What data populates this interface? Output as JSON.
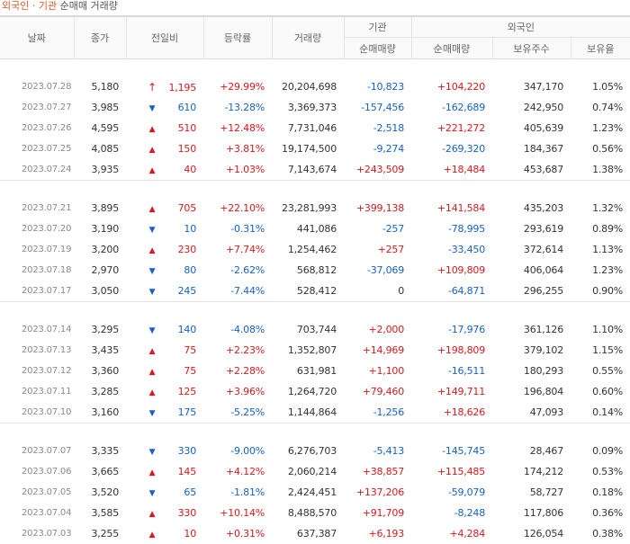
{
  "caption": {
    "highlight": "외국인 · 기관",
    "rest": "순매매 거래량"
  },
  "header": {
    "date": "날짜",
    "close": "종가",
    "change": "전일비",
    "rate": "등락률",
    "volume": "거래량",
    "inst_group": "기관",
    "foreign_group": "외국인",
    "inst_net": "순매매량",
    "foreign_net": "순매매량",
    "foreign_holdings": "보유주수",
    "foreign_ratio": "보유율"
  },
  "groups": [
    {
      "rows": [
        {
          "date": "2023.07.28",
          "close": "5,180",
          "dir": "up",
          "arrow": "↑",
          "change": "1,195",
          "rate": "+29.99%",
          "volume": "20,204,698",
          "inst": "-10,823",
          "foreign": "+104,220",
          "holdings": "347,170",
          "ratio": "1.05%"
        },
        {
          "date": "2023.07.27",
          "close": "3,985",
          "dir": "down",
          "arrow": "▼",
          "change": "610",
          "rate": "-13.28%",
          "volume": "3,369,373",
          "inst": "-157,456",
          "foreign": "-162,689",
          "holdings": "242,950",
          "ratio": "0.74%"
        },
        {
          "date": "2023.07.26",
          "close": "4,595",
          "dir": "up",
          "arrow": "▲",
          "change": "510",
          "rate": "+12.48%",
          "volume": "7,731,046",
          "inst": "-2,518",
          "foreign": "+221,272",
          "holdings": "405,639",
          "ratio": "1.23%"
        },
        {
          "date": "2023.07.25",
          "close": "4,085",
          "dir": "up",
          "arrow": "▲",
          "change": "150",
          "rate": "+3.81%",
          "volume": "19,174,500",
          "inst": "-9,274",
          "foreign": "-269,320",
          "holdings": "184,367",
          "ratio": "0.56%"
        },
        {
          "date": "2023.07.24",
          "close": "3,935",
          "dir": "up",
          "arrow": "▲",
          "change": "40",
          "rate": "+1.03%",
          "volume": "7,143,674",
          "inst": "+243,509",
          "foreign": "+18,484",
          "holdings": "453,687",
          "ratio": "1.38%"
        }
      ]
    },
    {
      "rows": [
        {
          "date": "2023.07.21",
          "close": "3,895",
          "dir": "up",
          "arrow": "▲",
          "change": "705",
          "rate": "+22.10%",
          "volume": "23,281,993",
          "inst": "+399,138",
          "foreign": "+141,584",
          "holdings": "435,203",
          "ratio": "1.32%"
        },
        {
          "date": "2023.07.20",
          "close": "3,190",
          "dir": "down",
          "arrow": "▼",
          "change": "10",
          "rate": "-0.31%",
          "volume": "441,086",
          "inst": "-257",
          "foreign": "-78,995",
          "holdings": "293,619",
          "ratio": "0.89%"
        },
        {
          "date": "2023.07.19",
          "close": "3,200",
          "dir": "up",
          "arrow": "▲",
          "change": "230",
          "rate": "+7.74%",
          "volume": "1,254,462",
          "inst": "+257",
          "foreign": "-33,450",
          "holdings": "372,614",
          "ratio": "1.13%"
        },
        {
          "date": "2023.07.18",
          "close": "2,970",
          "dir": "down",
          "arrow": "▼",
          "change": "80",
          "rate": "-2.62%",
          "volume": "568,812",
          "inst": "-37,069",
          "foreign": "+109,809",
          "holdings": "406,064",
          "ratio": "1.23%"
        },
        {
          "date": "2023.07.17",
          "close": "3,050",
          "dir": "down",
          "arrow": "▼",
          "change": "245",
          "rate": "-7.44%",
          "volume": "528,412",
          "inst": "0",
          "foreign": "-64,871",
          "holdings": "296,255",
          "ratio": "0.90%"
        }
      ]
    },
    {
      "rows": [
        {
          "date": "2023.07.14",
          "close": "3,295",
          "dir": "down",
          "arrow": "▼",
          "change": "140",
          "rate": "-4.08%",
          "volume": "703,744",
          "inst": "+2,000",
          "foreign": "-17,976",
          "holdings": "361,126",
          "ratio": "1.10%"
        },
        {
          "date": "2023.07.13",
          "close": "3,435",
          "dir": "up",
          "arrow": "▲",
          "change": "75",
          "rate": "+2.23%",
          "volume": "1,352,807",
          "inst": "+14,969",
          "foreign": "+198,809",
          "holdings": "379,102",
          "ratio": "1.15%"
        },
        {
          "date": "2023.07.12",
          "close": "3,360",
          "dir": "up",
          "arrow": "▲",
          "change": "75",
          "rate": "+2.28%",
          "volume": "631,981",
          "inst": "+1,100",
          "foreign": "-16,511",
          "holdings": "180,293",
          "ratio": "0.55%"
        },
        {
          "date": "2023.07.11",
          "close": "3,285",
          "dir": "up",
          "arrow": "▲",
          "change": "125",
          "rate": "+3.96%",
          "volume": "1,264,720",
          "inst": "+79,460",
          "foreign": "+149,711",
          "holdings": "196,804",
          "ratio": "0.60%"
        },
        {
          "date": "2023.07.10",
          "close": "3,160",
          "dir": "down",
          "arrow": "▼",
          "change": "175",
          "rate": "-5.25%",
          "volume": "1,144,864",
          "inst": "-1,256",
          "foreign": "+18,626",
          "holdings": "47,093",
          "ratio": "0.14%"
        }
      ]
    },
    {
      "rows": [
        {
          "date": "2023.07.07",
          "close": "3,335",
          "dir": "down",
          "arrow": "▼",
          "change": "330",
          "rate": "-9.00%",
          "volume": "6,276,703",
          "inst": "-5,413",
          "foreign": "-145,745",
          "holdings": "28,467",
          "ratio": "0.09%"
        },
        {
          "date": "2023.07.06",
          "close": "3,665",
          "dir": "up",
          "arrow": "▲",
          "change": "145",
          "rate": "+4.12%",
          "volume": "2,060,214",
          "inst": "+38,857",
          "foreign": "+115,485",
          "holdings": "174,212",
          "ratio": "0.53%"
        },
        {
          "date": "2023.07.05",
          "close": "3,520",
          "dir": "down",
          "arrow": "▼",
          "change": "65",
          "rate": "-1.81%",
          "volume": "2,424,451",
          "inst": "+137,206",
          "foreign": "-59,079",
          "holdings": "58,727",
          "ratio": "0.18%"
        },
        {
          "date": "2023.07.04",
          "close": "3,585",
          "dir": "up",
          "arrow": "▲",
          "change": "330",
          "rate": "+10.14%",
          "volume": "8,488,570",
          "inst": "+91,709",
          "foreign": "-8,248",
          "holdings": "117,806",
          "ratio": "0.36%"
        },
        {
          "date": "2023.07.03",
          "close": "3,255",
          "dir": "up",
          "arrow": "▲",
          "change": "10",
          "rate": "+0.31%",
          "volume": "637,387",
          "inst": "+6,193",
          "foreign": "+4,284",
          "holdings": "126,054",
          "ratio": "0.38%"
        }
      ]
    }
  ],
  "colors": {
    "up": "#d7191c",
    "down": "#1561c4",
    "caption_highlight": "#e4572e"
  }
}
